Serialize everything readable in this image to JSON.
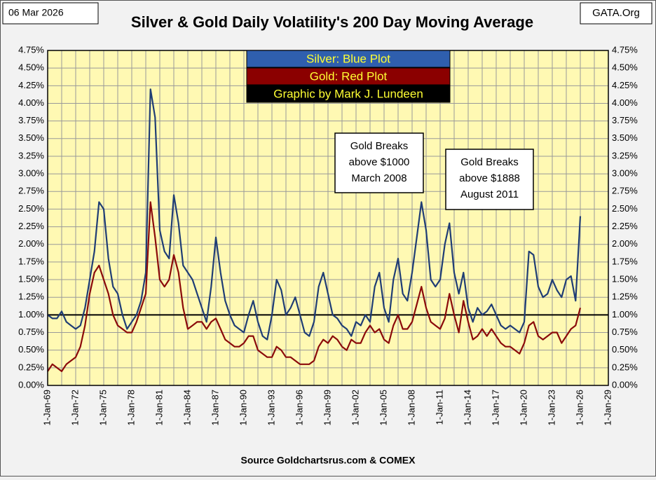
{
  "chart_data": {
    "type": "line",
    "title": "Silver & Gold Daily Volatility's 200 Day Moving Average",
    "date": "06 Mar 2026",
    "site": "GATA.Org",
    "credit": "Graphic by Mark J. Lundeen",
    "footer": "Source Goldchartsrus.com & COMEX",
    "annotations": [
      {
        "lines": [
          "Gold Breaks",
          "above $1000",
          "March 2008"
        ]
      },
      {
        "lines": [
          "Gold Breaks",
          "above $1888",
          "August 2011"
        ]
      }
    ],
    "reference_line": 1,
    "grid": true,
    "xlim": [
      1969,
      2029
    ],
    "xticks": [
      {
        "value": 1969,
        "label": "1-Jan-69"
      },
      {
        "value": 1972,
        "label": "1-Jan-72"
      },
      {
        "value": 1975,
        "label": "1-Jan-75"
      },
      {
        "value": 1978,
        "label": "1-Jan-78"
      },
      {
        "value": 1981,
        "label": "1-Jan-81"
      },
      {
        "value": 1984,
        "label": "1-Jan-84"
      },
      {
        "value": 1987,
        "label": "1-Jan-87"
      },
      {
        "value": 1990,
        "label": "1-Jan-90"
      },
      {
        "value": 1993,
        "label": "1-Jan-93"
      },
      {
        "value": 1996,
        "label": "1-Jan-96"
      },
      {
        "value": 1999,
        "label": "1-Jan-99"
      },
      {
        "value": 2002,
        "label": "1-Jan-02"
      },
      {
        "value": 2005,
        "label": "1-Jan-05"
      },
      {
        "value": 2008,
        "label": "1-Jan-08"
      },
      {
        "value": 2011,
        "label": "1-Jan-11"
      },
      {
        "value": 2014,
        "label": "1-Jan-14"
      },
      {
        "value": 2017,
        "label": "1-Jan-17"
      },
      {
        "value": 2020,
        "label": "1-Jan-20"
      },
      {
        "value": 2023,
        "label": "1-Jan-23"
      },
      {
        "value": 2026,
        "label": "1-Jan-26"
      },
      {
        "value": 2029,
        "label": "1-Jan-29"
      }
    ],
    "ylim": [
      0,
      4.75
    ],
    "yticks": [
      {
        "value": 0,
        "label": "0.00%"
      },
      {
        "value": 0.25,
        "label": "0.25%"
      },
      {
        "value": 0.5,
        "label": "0.50%"
      },
      {
        "value": 0.75,
        "label": "0.75%"
      },
      {
        "value": 1,
        "label": "1.00%"
      },
      {
        "value": 1.25,
        "label": "1.25%"
      },
      {
        "value": 1.5,
        "label": "1.50%"
      },
      {
        "value": 1.75,
        "label": "1.75%"
      },
      {
        "value": 2,
        "label": "2.00%"
      },
      {
        "value": 2.25,
        "label": "2.25%"
      },
      {
        "value": 2.5,
        "label": "2.50%"
      },
      {
        "value": 2.75,
        "label": "2.75%"
      },
      {
        "value": 3,
        "label": "3.00%"
      },
      {
        "value": 3.25,
        "label": "3.25%"
      },
      {
        "value": 3.5,
        "label": "3.50%"
      },
      {
        "value": 3.75,
        "label": "3.75%"
      },
      {
        "value": 4,
        "label": "4.00%"
      },
      {
        "value": 4.25,
        "label": "4.25%"
      },
      {
        "value": 4.5,
        "label": "4.50%"
      },
      {
        "value": 4.75,
        "label": "4.75%"
      }
    ],
    "x": [
      1969,
      1969.5,
      1970,
      1970.5,
      1971,
      1971.5,
      1972,
      1972.5,
      1973,
      1973.5,
      1974,
      1974.5,
      1975,
      1975.5,
      1976,
      1976.5,
      1977,
      1977.5,
      1978,
      1978.5,
      1979,
      1979.5,
      1980,
      1980.5,
      1981,
      1981.5,
      1982,
      1982.5,
      1983,
      1983.5,
      1984,
      1984.5,
      1985,
      1985.5,
      1986,
      1986.5,
      1987,
      1987.5,
      1988,
      1988.5,
      1989,
      1989.5,
      1990,
      1990.5,
      1991,
      1991.5,
      1992,
      1992.5,
      1993,
      1993.5,
      1994,
      1994.5,
      1995,
      1995.5,
      1996,
      1996.5,
      1997,
      1997.5,
      1998,
      1998.5,
      1999,
      1999.5,
      2000,
      2000.5,
      2001,
      2001.5,
      2002,
      2002.5,
      2003,
      2003.5,
      2004,
      2004.5,
      2005,
      2005.5,
      2006,
      2006.5,
      2007,
      2007.5,
      2008,
      2008.5,
      2009,
      2009.5,
      2010,
      2010.5,
      2011,
      2011.5,
      2012,
      2012.5,
      2013,
      2013.5,
      2014,
      2014.5,
      2015,
      2015.5,
      2016,
      2016.5,
      2017,
      2017.5,
      2018,
      2018.5,
      2019,
      2019.5,
      2020,
      2020.5,
      2021,
      2021.5,
      2022,
      2022.5,
      2023,
      2023.5,
      2024,
      2024.5,
      2025,
      2025.5,
      2026
    ],
    "series": [
      {
        "name": "Silver: Blue Plot",
        "color": "#1f3d75",
        "box_color": "#2f5fae",
        "values": [
          1.0,
          0.95,
          0.95,
          1.05,
          0.9,
          0.85,
          0.8,
          0.85,
          1.1,
          1.5,
          1.9,
          2.6,
          2.5,
          1.8,
          1.4,
          1.3,
          1.0,
          0.8,
          0.9,
          1.0,
          1.2,
          1.6,
          4.2,
          3.8,
          2.2,
          1.9,
          1.8,
          2.7,
          2.3,
          1.7,
          1.6,
          1.5,
          1.3,
          1.1,
          0.9,
          1.4,
          2.1,
          1.6,
          1.2,
          1.0,
          0.85,
          0.8,
          0.75,
          1.0,
          1.2,
          0.9,
          0.7,
          0.65,
          1.0,
          1.5,
          1.35,
          1.0,
          1.1,
          1.25,
          1.0,
          0.75,
          0.7,
          0.9,
          1.4,
          1.6,
          1.3,
          1.0,
          0.95,
          0.85,
          0.8,
          0.7,
          0.9,
          0.85,
          1.0,
          0.9,
          1.4,
          1.6,
          1.1,
          0.9,
          1.5,
          1.8,
          1.3,
          1.2,
          1.6,
          2.1,
          2.6,
          2.2,
          1.5,
          1.4,
          1.5,
          2.0,
          2.3,
          1.6,
          1.3,
          1.6,
          1.1,
          0.9,
          1.1,
          1.0,
          1.05,
          1.15,
          1.0,
          0.85,
          0.8,
          0.85,
          0.8,
          0.75,
          0.9,
          1.9,
          1.85,
          1.4,
          1.25,
          1.3,
          1.5,
          1.35,
          1.25,
          1.5,
          1.55,
          1.2,
          2.4
        ]
      },
      {
        "name": "Gold: Red Plot",
        "color": "#8b0a0a",
        "box_color": "#8b0000",
        "values": [
          0.2,
          0.3,
          0.25,
          0.2,
          0.3,
          0.35,
          0.4,
          0.55,
          0.85,
          1.3,
          1.6,
          1.7,
          1.5,
          1.3,
          1.0,
          0.85,
          0.8,
          0.75,
          0.75,
          0.9,
          1.1,
          1.3,
          2.6,
          2.1,
          1.5,
          1.4,
          1.5,
          1.85,
          1.6,
          1.1,
          0.8,
          0.85,
          0.9,
          0.9,
          0.8,
          0.9,
          0.95,
          0.8,
          0.65,
          0.6,
          0.55,
          0.55,
          0.6,
          0.7,
          0.7,
          0.5,
          0.45,
          0.4,
          0.4,
          0.55,
          0.5,
          0.4,
          0.4,
          0.35,
          0.3,
          0.3,
          0.3,
          0.35,
          0.55,
          0.65,
          0.6,
          0.7,
          0.65,
          0.55,
          0.5,
          0.65,
          0.6,
          0.6,
          0.75,
          0.85,
          0.75,
          0.8,
          0.65,
          0.6,
          0.85,
          1.0,
          0.8,
          0.8,
          0.9,
          1.15,
          1.4,
          1.1,
          0.9,
          0.85,
          0.8,
          0.95,
          1.3,
          1.0,
          0.75,
          1.2,
          0.9,
          0.65,
          0.7,
          0.8,
          0.7,
          0.8,
          0.7,
          0.6,
          0.55,
          0.55,
          0.5,
          0.45,
          0.6,
          0.85,
          0.9,
          0.7,
          0.65,
          0.7,
          0.75,
          0.75,
          0.6,
          0.7,
          0.8,
          0.85,
          1.1
        ]
      }
    ]
  }
}
